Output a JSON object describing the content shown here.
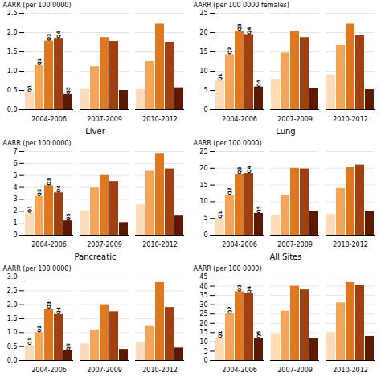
{
  "chart_data": [
    {
      "type": "bar",
      "ylabel": "AARR (per 100 0000)",
      "categories": [
        "2004-2006",
        "2007-2009",
        "2010-2012"
      ],
      "series": [
        {
          "name": "Q1",
          "color": "#FDDBB8",
          "values": [
            0.45,
            0.53,
            0.52
          ]
        },
        {
          "name": "Q2",
          "color": "#F5A55A",
          "values": [
            1.15,
            1.12,
            1.25
          ]
        },
        {
          "name": "Q3",
          "color": "#E07820",
          "values": [
            1.78,
            1.87,
            2.22
          ]
        },
        {
          "name": "Q4",
          "color": "#A04010",
          "values": [
            1.85,
            1.77,
            1.75
          ]
        },
        {
          "name": "Q5",
          "color": "#5C1800",
          "values": [
            0.4,
            0.5,
            0.57
          ]
        }
      ],
      "ylim": [
        0,
        2.5
      ],
      "yticks": [
        {
          "value": 0,
          "label": "0.0"
        },
        0.5,
        {
          "value": 1,
          "label": "1.0"
        },
        1.5,
        {
          "value": 2,
          "label": "2.0"
        },
        2.5
      ],
      "grid": true
    },
    {
      "type": "bar",
      "ylabel": "AARR (per 100 0000 females)",
      "categories": [
        "2004-2006",
        "2007-2009",
        "2010-2012"
      ],
      "series": [
        {
          "name": "Q1",
          "color": "#FDDBB8",
          "values": [
            7.5,
            7.9,
            9.0
          ]
        },
        {
          "name": "Q2",
          "color": "#F5A55A",
          "values": [
            14.3,
            14.7,
            16.7
          ]
        },
        {
          "name": "Q3",
          "color": "#E07820",
          "values": [
            20.4,
            20.3,
            22.2
          ]
        },
        {
          "name": "Q4",
          "color": "#A04010",
          "values": [
            19.5,
            18.7,
            19.2
          ]
        },
        {
          "name": "Q5",
          "color": "#5C1800",
          "values": [
            5.9,
            5.5,
            5.2
          ]
        }
      ],
      "ylim": [
        0,
        25
      ],
      "yticks": [
        0,
        5,
        10,
        15,
        20,
        25
      ],
      "grid": true
    },
    {
      "type": "bar",
      "title": "Liver",
      "ylabel": "AARR (per 100 0000)",
      "categories": [
        "2004-2006",
        "2007-2009",
        "2010-2012"
      ],
      "series": [
        {
          "name": "Q1",
          "color": "#FDDBB8",
          "values": [
            1.85,
            2.05,
            2.55
          ]
        },
        {
          "name": "Q2",
          "color": "#F5A55A",
          "values": [
            3.25,
            3.95,
            5.35
          ]
        },
        {
          "name": "Q3",
          "color": "#E07820",
          "values": [
            4.15,
            5.0,
            6.85
          ]
        },
        {
          "name": "Q4",
          "color": "#A04010",
          "values": [
            3.55,
            4.5,
            5.55
          ]
        },
        {
          "name": "Q5",
          "color": "#5C1800",
          "values": [
            1.2,
            1.05,
            1.6
          ]
        }
      ],
      "ylim": [
        0,
        7
      ],
      "yticks": [
        0,
        1,
        2,
        3,
        4,
        5,
        6,
        7
      ],
      "grid": true
    },
    {
      "type": "bar",
      "title": "Lung",
      "ylabel": "AARR (per 100 0000)",
      "categories": [
        "2004-2006",
        "2007-2009",
        "2010-2012"
      ],
      "series": [
        {
          "name": "Q1",
          "color": "#FDDBB8",
          "values": [
            5.0,
            6.0,
            6.3
          ]
        },
        {
          "name": "Q2",
          "color": "#F5A55A",
          "values": [
            12.0,
            12.0,
            14.0
          ]
        },
        {
          "name": "Q3",
          "color": "#E07820",
          "values": [
            18.2,
            20.0,
            20.2
          ]
        },
        {
          "name": "Q4",
          "color": "#A04010",
          "values": [
            18.5,
            19.8,
            21.0
          ]
        },
        {
          "name": "Q5",
          "color": "#5C1800",
          "values": [
            6.5,
            7.2,
            7.1
          ]
        }
      ],
      "ylim": [
        0,
        25
      ],
      "yticks": [
        0,
        5,
        10,
        15,
        20,
        25
      ],
      "grid": true
    },
    {
      "type": "bar",
      "title": "Pancreatic",
      "ylabel": "AARR (per 100 0000)",
      "categories": [
        "2004-2006",
        "2007-2009",
        "2010-2012"
      ],
      "series": [
        {
          "name": "Q1",
          "color": "#FDDBB8",
          "values": [
            0.55,
            0.6,
            0.65
          ]
        },
        {
          "name": "Q2",
          "color": "#F5A55A",
          "values": [
            1.0,
            1.1,
            1.25
          ]
        },
        {
          "name": "Q3",
          "color": "#E07820",
          "values": [
            1.85,
            2.0,
            2.8
          ]
        },
        {
          "name": "Q4",
          "color": "#A04010",
          "values": [
            1.65,
            1.75,
            1.9
          ]
        },
        {
          "name": "Q5",
          "color": "#5C1800",
          "values": [
            0.35,
            0.4,
            0.45
          ]
        }
      ],
      "ylim": [
        0,
        3.0
      ],
      "yticks": [
        {
          "value": 0,
          "label": "0.0"
        },
        0.5,
        {
          "value": 1,
          "label": "1.0"
        },
        1.5,
        {
          "value": 2,
          "label": "2.0"
        },
        2.5,
        {
          "value": 3,
          "label": "3.0"
        }
      ],
      "grid": true
    },
    {
      "type": "bar",
      "title": "All Sites",
      "ylabel": "AARR (per 100 0000)",
      "categories": [
        "2004-2006",
        "2007-2009",
        "2010-2012"
      ],
      "series": [
        {
          "name": "Q1",
          "color": "#FDDBB8",
          "values": [
            12.0,
            14.0,
            15.0
          ]
        },
        {
          "name": "Q2",
          "color": "#F5A55A",
          "values": [
            25.0,
            26.5,
            31.0
          ]
        },
        {
          "name": "Q3",
          "color": "#E07820",
          "values": [
            37.0,
            40.0,
            42.0
          ]
        },
        {
          "name": "Q4",
          "color": "#A04010",
          "values": [
            36.0,
            38.0,
            40.5
          ]
        },
        {
          "name": "Q5",
          "color": "#5C1800",
          "values": [
            12.0,
            12.0,
            13.0
          ]
        }
      ],
      "ylim": [
        0,
        45
      ],
      "yticks": [
        0,
        5,
        10,
        15,
        20,
        25,
        30,
        35,
        40,
        45
      ],
      "grid": true
    }
  ]
}
